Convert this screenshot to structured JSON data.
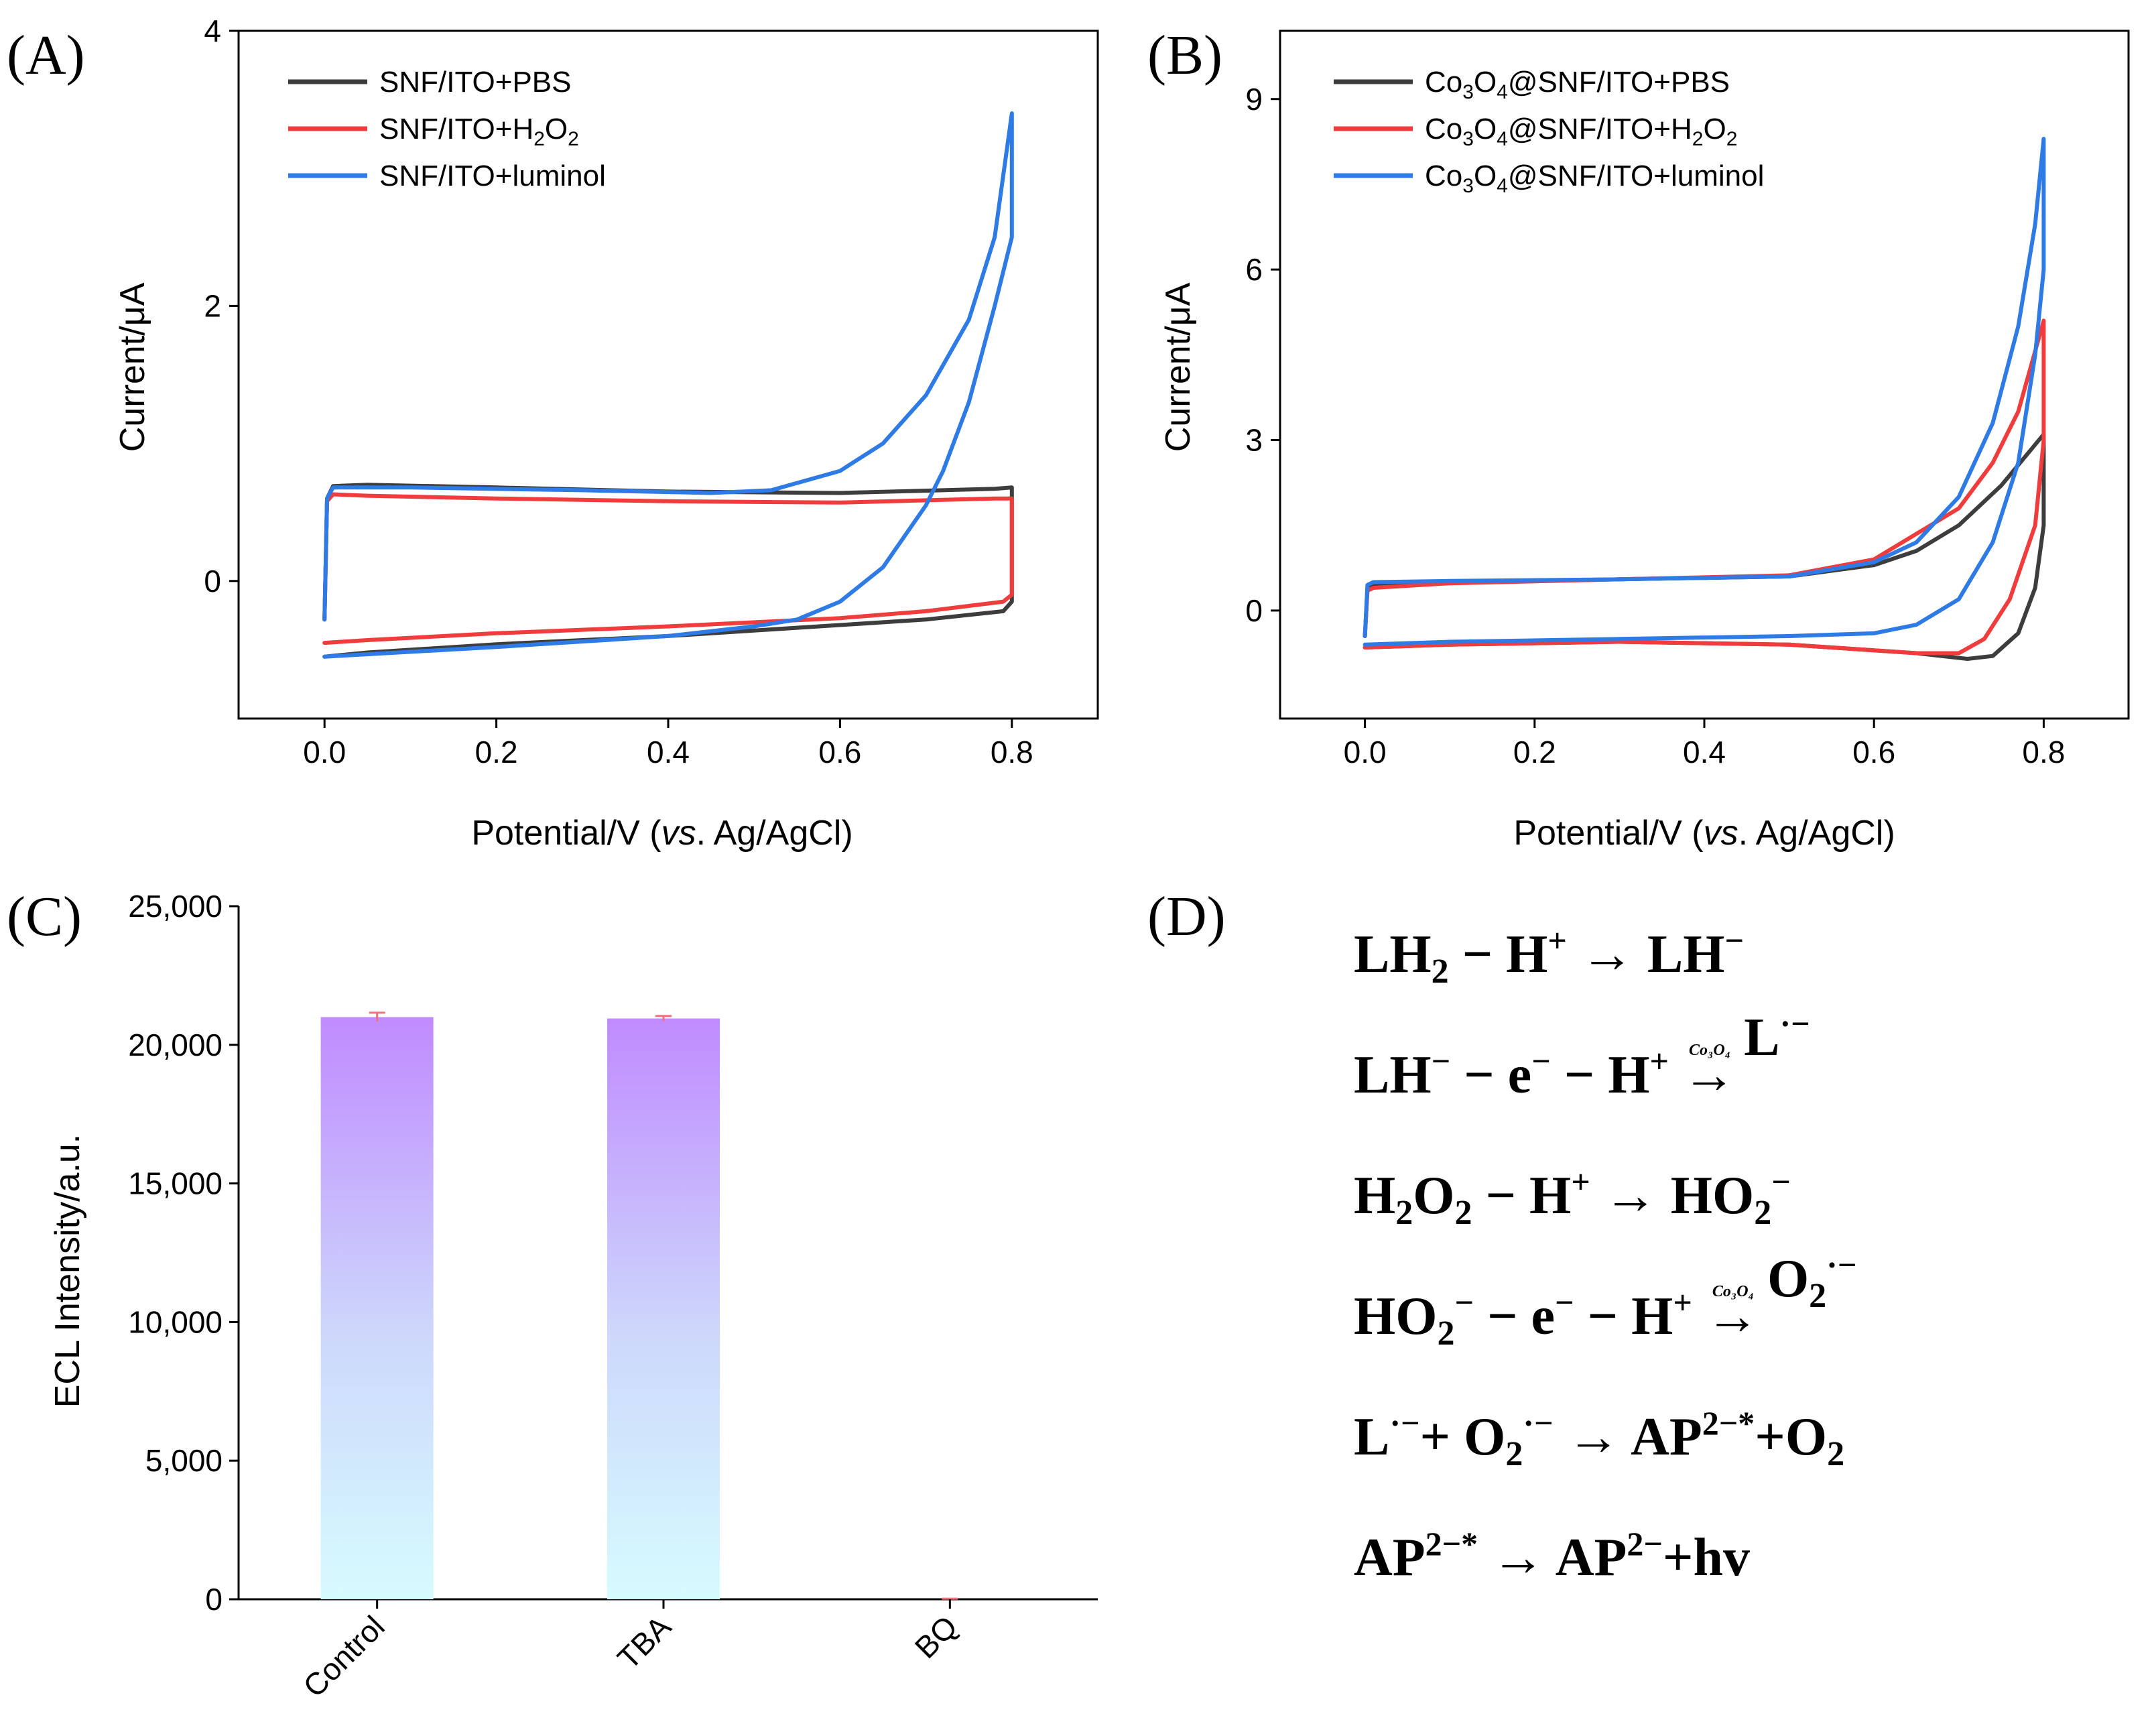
{
  "panels": {
    "A": {
      "letter": "(A)",
      "xlabel_prefix": "Potential/V (",
      "xlabel_italic": "vs",
      "xlabel_suffix": ". Ag/AgCl)",
      "ylabel": "Current/μA",
      "legend": [
        {
          "prefix": "SNF/ITO+PBS",
          "sub1": "",
          "mid": "",
          "sub2": "",
          "color": "#3d3d3d"
        },
        {
          "prefix": "SNF/ITO+H",
          "sub1": "2",
          "mid": "O",
          "sub2": "2",
          "color": "#f03c3c"
        },
        {
          "prefix": "SNF/ITO+luminol",
          "sub1": "",
          "mid": "",
          "sub2": "",
          "color": "#2f7be6"
        }
      ]
    },
    "B": {
      "letter": "(B)",
      "xlabel_prefix": "Potential/V (",
      "xlabel_italic": "vs",
      "xlabel_suffix": ". Ag/AgCl)",
      "ylabel": "Current/μA",
      "legend": [
        {
          "a": "Co",
          "s1": "3",
          "b": "O",
          "s2": "4",
          "c": "@SNF/ITO+PBS",
          "s3": "",
          "d": "",
          "s4": "",
          "color": "#3d3d3d"
        },
        {
          "a": "Co",
          "s1": "3",
          "b": "O",
          "s2": "4",
          "c": "@SNF/ITO+H",
          "s3": "2",
          "d": "O",
          "s4": "2",
          "color": "#f03c3c"
        },
        {
          "a": "Co",
          "s1": "3",
          "b": "O",
          "s2": "4",
          "c": "@SNF/ITO+luminol",
          "s3": "",
          "d": "",
          "s4": "",
          "color": "#2f7be6"
        }
      ]
    },
    "C": {
      "letter": "(C)",
      "ylabel": "ECL Intensity/a.u.",
      "error_color": "#f07080",
      "bar_top_color": "#c08bff",
      "bar_bottom_color": "#d6fbff"
    },
    "D": {
      "letter": "(D)",
      "catalyst": "Co₃O₄",
      "equations": [
        [
          [
            "t",
            "LH"
          ],
          [
            "sub",
            "2"
          ],
          [
            "t",
            " − H"
          ],
          [
            "sup",
            "+"
          ],
          [
            "t",
            " → LH"
          ],
          [
            "sup",
            "−"
          ]
        ],
        [
          [
            "t",
            "LH"
          ],
          [
            "sup",
            "−"
          ],
          [
            "t",
            " − e"
          ],
          [
            "sup",
            "−"
          ],
          [
            "t",
            " − H"
          ],
          [
            "sup",
            "+"
          ],
          [
            "t",
            "  "
          ],
          [
            "arrowcat",
            "→"
          ],
          [
            "t",
            " L"
          ],
          [
            "sup",
            "·−"
          ]
        ],
        [
          [
            "t",
            "H"
          ],
          [
            "sub",
            "2"
          ],
          [
            "t",
            "O"
          ],
          [
            "sub",
            "2"
          ],
          [
            "t",
            " − H"
          ],
          [
            "sup",
            "+"
          ],
          [
            "t",
            " → HO"
          ],
          [
            "subsup",
            "2",
            "−"
          ]
        ],
        [
          [
            "t",
            "HO"
          ],
          [
            "subsup",
            "2",
            "−"
          ],
          [
            "t",
            " − e"
          ],
          [
            "sup",
            "−"
          ],
          [
            "t",
            " − H"
          ],
          [
            "sup",
            "+"
          ],
          [
            "t",
            " "
          ],
          [
            "arrowcat",
            "→"
          ],
          [
            "t",
            " O"
          ],
          [
            "subsup",
            "2",
            "·−"
          ]
        ],
        [
          [
            "t",
            "L"
          ],
          [
            "sup",
            "·−"
          ],
          [
            "t",
            "+ O"
          ],
          [
            "subsup",
            "2",
            "·−"
          ],
          [
            "t",
            "  → AP"
          ],
          [
            "sup",
            "2−*"
          ],
          [
            "t",
            "+O"
          ],
          [
            "sub",
            "2"
          ]
        ],
        [
          [
            "t",
            "AP"
          ],
          [
            "sup",
            "2−*"
          ],
          [
            "t",
            " → AP"
          ],
          [
            "sup",
            "2−"
          ],
          [
            "t",
            "+hv"
          ]
        ]
      ]
    }
  },
  "chart_data": [
    {
      "id": "A",
      "type": "line",
      "subtype": "cyclic-voltammogram",
      "xlabel": "Potential/V (vs. Ag/AgCl)",
      "ylabel": "Current/μA",
      "xlim": [
        -0.1,
        0.9
      ],
      "ylim": [
        -1.0,
        4.0
      ],
      "xticks": [
        0.0,
        0.2,
        0.4,
        0.6,
        0.8
      ],
      "xtick_labels": [
        "0.0",
        "0.2",
        "0.4",
        "0.6",
        "0.8"
      ],
      "yticks": [
        0,
        2,
        4
      ],
      "ytick_labels": [
        "0",
        "2",
        "4"
      ],
      "legend_position": "top-left",
      "series": [
        {
          "name": "SNF/ITO+PBS",
          "color": "#3d3d3d",
          "x": [
            0.0,
            0.003,
            0.01,
            0.05,
            0.2,
            0.4,
            0.6,
            0.78,
            0.8,
            0.8,
            0.79,
            0.7,
            0.6,
            0.4,
            0.2,
            0.05,
            0.0
          ],
          "y": [
            -0.28,
            0.6,
            0.69,
            0.7,
            0.68,
            0.65,
            0.64,
            0.67,
            0.68,
            -0.15,
            -0.22,
            -0.28,
            -0.32,
            -0.4,
            -0.46,
            -0.52,
            -0.55
          ]
        },
        {
          "name": "SNF/ITO+H₂O₂",
          "color": "#f03c3c",
          "x": [
            0.0,
            0.003,
            0.01,
            0.05,
            0.2,
            0.4,
            0.6,
            0.78,
            0.8,
            0.8,
            0.79,
            0.7,
            0.6,
            0.4,
            0.2,
            0.05,
            0.0
          ],
          "y": [
            -0.28,
            0.58,
            0.63,
            0.62,
            0.6,
            0.58,
            0.57,
            0.6,
            0.6,
            -0.1,
            -0.15,
            -0.22,
            -0.27,
            -0.33,
            -0.38,
            -0.43,
            -0.45
          ]
        },
        {
          "name": "SNF/ITO+luminol",
          "color": "#2f7be6",
          "x": [
            0.0,
            0.003,
            0.01,
            0.1,
            0.3,
            0.45,
            0.52,
            0.6,
            0.65,
            0.7,
            0.75,
            0.78,
            0.8,
            0.8,
            0.78,
            0.75,
            0.72,
            0.7,
            0.65,
            0.6,
            0.55,
            0.5,
            0.4,
            0.2,
            0.0
          ],
          "y": [
            -0.28,
            0.6,
            0.68,
            0.68,
            0.66,
            0.64,
            0.66,
            0.8,
            1.0,
            1.35,
            1.9,
            2.5,
            3.4,
            2.5,
            2.0,
            1.3,
            0.8,
            0.55,
            0.1,
            -0.15,
            -0.28,
            -0.33,
            -0.4,
            -0.48,
            -0.55
          ]
        }
      ]
    },
    {
      "id": "B",
      "type": "line",
      "subtype": "cyclic-voltammogram",
      "xlabel": "Potential/V (vs. Ag/AgCl)",
      "ylabel": "Current/μA",
      "xlim": [
        -0.1,
        0.9
      ],
      "ylim": [
        -1.9,
        10.2
      ],
      "xticks": [
        0.0,
        0.2,
        0.4,
        0.6,
        0.8
      ],
      "xtick_labels": [
        "0.0",
        "0.2",
        "0.4",
        "0.6",
        "0.8"
      ],
      "yticks": [
        0,
        3,
        6,
        9
      ],
      "ytick_labels": [
        "0",
        "3",
        "6",
        "9"
      ],
      "legend_position": "top-left",
      "series": [
        {
          "name": "Co₃O₄@SNF/ITO+PBS",
          "color": "#3d3d3d",
          "x": [
            0.0,
            0.003,
            0.01,
            0.1,
            0.3,
            0.5,
            0.6,
            0.65,
            0.7,
            0.75,
            0.8,
            0.8,
            0.79,
            0.77,
            0.74,
            0.71,
            0.65,
            0.5,
            0.3,
            0.1,
            0.0
          ],
          "y": [
            -0.45,
            0.4,
            0.45,
            0.5,
            0.55,
            0.6,
            0.8,
            1.05,
            1.5,
            2.2,
            3.1,
            1.5,
            0.4,
            -0.4,
            -0.8,
            -0.85,
            -0.75,
            -0.6,
            -0.55,
            -0.6,
            -0.65
          ]
        },
        {
          "name": "Co₃O₄@SNF/ITO+H₂O₂",
          "color": "#f03c3c",
          "x": [
            0.0,
            0.003,
            0.01,
            0.1,
            0.3,
            0.5,
            0.6,
            0.7,
            0.74,
            0.77,
            0.8,
            0.8,
            0.79,
            0.76,
            0.73,
            0.7,
            0.65,
            0.5,
            0.3,
            0.1,
            0.0
          ],
          "y": [
            -0.45,
            0.35,
            0.4,
            0.48,
            0.55,
            0.62,
            0.9,
            1.8,
            2.6,
            3.5,
            5.1,
            3.0,
            1.5,
            0.2,
            -0.5,
            -0.75,
            -0.75,
            -0.6,
            -0.55,
            -0.6,
            -0.65
          ]
        },
        {
          "name": "Co₃O₄@SNF/ITO+luminol",
          "color": "#2f7be6",
          "x": [
            0.0,
            0.003,
            0.01,
            0.1,
            0.3,
            0.5,
            0.6,
            0.65,
            0.7,
            0.74,
            0.77,
            0.79,
            0.8,
            0.8,
            0.79,
            0.77,
            0.74,
            0.7,
            0.65,
            0.6,
            0.5,
            0.3,
            0.1,
            0.0
          ],
          "y": [
            -0.45,
            0.45,
            0.5,
            0.52,
            0.55,
            0.6,
            0.85,
            1.2,
            2.0,
            3.3,
            5.0,
            6.8,
            8.3,
            6.0,
            4.5,
            2.6,
            1.2,
            0.2,
            -0.25,
            -0.4,
            -0.45,
            -0.5,
            -0.55,
            -0.6
          ]
        }
      ]
    },
    {
      "id": "C",
      "type": "bar",
      "categories": [
        "Control",
        "TBA",
        "BQ"
      ],
      "values": [
        21000,
        20950,
        0
      ],
      "errors": [
        160,
        90,
        20
      ],
      "ylabel": "ECL Intensity/a.u.",
      "xlabel": "",
      "ylim": [
        0,
        25000
      ],
      "yticks": [
        0,
        5000,
        10000,
        15000,
        20000,
        25000
      ],
      "ytick_labels": [
        "0",
        "5,000",
        "10,000",
        "15,000",
        "20,000",
        "25,000"
      ]
    }
  ]
}
